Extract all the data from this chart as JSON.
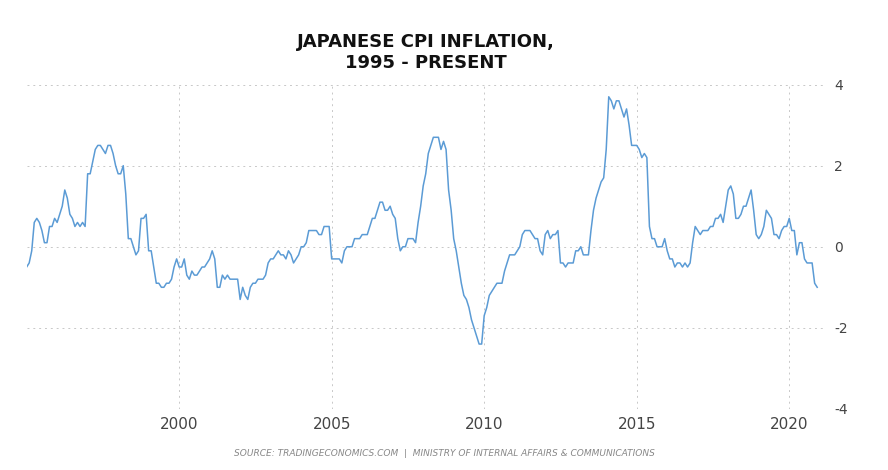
{
  "title": "JAPANESE CPI INFLATION,\n1995 - PRESENT",
  "title_fontsize": 13,
  "source_text": "SOURCE: TRADINGECONOMICS.COM  |  MINISTRY OF INTERNAL AFFAIRS & COMMUNICATIONS",
  "line_color": "#5b9bd5",
  "background_color": "#ffffff",
  "ylim": [
    -4,
    4
  ],
  "yticks": [
    -4,
    -2,
    0,
    2,
    4
  ],
  "grid_color": "#c8c8c8",
  "xlim": [
    1995.0,
    2021.2
  ],
  "xticks": [
    2000,
    2005,
    2010,
    2015,
    2020
  ],
  "years_data": [
    1995.0,
    1995.083,
    1995.167,
    1995.25,
    1995.333,
    1995.417,
    1995.5,
    1995.583,
    1995.667,
    1995.75,
    1995.833,
    1995.917,
    1996.0,
    1996.083,
    1996.167,
    1996.25,
    1996.333,
    1996.417,
    1996.5,
    1996.583,
    1996.667,
    1996.75,
    1996.833,
    1996.917,
    1997.0,
    1997.083,
    1997.167,
    1997.25,
    1997.333,
    1997.417,
    1997.5,
    1997.583,
    1997.667,
    1997.75,
    1997.833,
    1997.917,
    1998.0,
    1998.083,
    1998.167,
    1998.25,
    1998.333,
    1998.417,
    1998.5,
    1998.583,
    1998.667,
    1998.75,
    1998.833,
    1998.917,
    1999.0,
    1999.083,
    1999.167,
    1999.25,
    1999.333,
    1999.417,
    1999.5,
    1999.583,
    1999.667,
    1999.75,
    1999.833,
    1999.917,
    2000.0,
    2000.083,
    2000.167,
    2000.25,
    2000.333,
    2000.417,
    2000.5,
    2000.583,
    2000.667,
    2000.75,
    2000.833,
    2000.917,
    2001.0,
    2001.083,
    2001.167,
    2001.25,
    2001.333,
    2001.417,
    2001.5,
    2001.583,
    2001.667,
    2001.75,
    2001.833,
    2001.917,
    2002.0,
    2002.083,
    2002.167,
    2002.25,
    2002.333,
    2002.417,
    2002.5,
    2002.583,
    2002.667,
    2002.75,
    2002.833,
    2002.917,
    2003.0,
    2003.083,
    2003.167,
    2003.25,
    2003.333,
    2003.417,
    2003.5,
    2003.583,
    2003.667,
    2003.75,
    2003.833,
    2003.917,
    2004.0,
    2004.083,
    2004.167,
    2004.25,
    2004.333,
    2004.417,
    2004.5,
    2004.583,
    2004.667,
    2004.75,
    2004.833,
    2004.917,
    2005.0,
    2005.083,
    2005.167,
    2005.25,
    2005.333,
    2005.417,
    2005.5,
    2005.583,
    2005.667,
    2005.75,
    2005.833,
    2005.917,
    2006.0,
    2006.083,
    2006.167,
    2006.25,
    2006.333,
    2006.417,
    2006.5,
    2006.583,
    2006.667,
    2006.75,
    2006.833,
    2006.917,
    2007.0,
    2007.083,
    2007.167,
    2007.25,
    2007.333,
    2007.417,
    2007.5,
    2007.583,
    2007.667,
    2007.75,
    2007.833,
    2007.917,
    2008.0,
    2008.083,
    2008.167,
    2008.25,
    2008.333,
    2008.417,
    2008.5,
    2008.583,
    2008.667,
    2008.75,
    2008.833,
    2008.917,
    2009.0,
    2009.083,
    2009.167,
    2009.25,
    2009.333,
    2009.417,
    2009.5,
    2009.583,
    2009.667,
    2009.75,
    2009.833,
    2009.917,
    2010.0,
    2010.083,
    2010.167,
    2010.25,
    2010.333,
    2010.417,
    2010.5,
    2010.583,
    2010.667,
    2010.75,
    2010.833,
    2010.917,
    2011.0,
    2011.083,
    2011.167,
    2011.25,
    2011.333,
    2011.417,
    2011.5,
    2011.583,
    2011.667,
    2011.75,
    2011.833,
    2011.917,
    2012.0,
    2012.083,
    2012.167,
    2012.25,
    2012.333,
    2012.417,
    2012.5,
    2012.583,
    2012.667,
    2012.75,
    2012.833,
    2012.917,
    2013.0,
    2013.083,
    2013.167,
    2013.25,
    2013.333,
    2013.417,
    2013.5,
    2013.583,
    2013.667,
    2013.75,
    2013.833,
    2013.917,
    2014.0,
    2014.083,
    2014.167,
    2014.25,
    2014.333,
    2014.417,
    2014.5,
    2014.583,
    2014.667,
    2014.75,
    2014.833,
    2014.917,
    2015.0,
    2015.083,
    2015.167,
    2015.25,
    2015.333,
    2015.417,
    2015.5,
    2015.583,
    2015.667,
    2015.75,
    2015.833,
    2015.917,
    2016.0,
    2016.083,
    2016.167,
    2016.25,
    2016.333,
    2016.417,
    2016.5,
    2016.583,
    2016.667,
    2016.75,
    2016.833,
    2016.917,
    2017.0,
    2017.083,
    2017.167,
    2017.25,
    2017.333,
    2017.417,
    2017.5,
    2017.583,
    2017.667,
    2017.75,
    2017.833,
    2017.917,
    2018.0,
    2018.083,
    2018.167,
    2018.25,
    2018.333,
    2018.417,
    2018.5,
    2018.583,
    2018.667,
    2018.75,
    2018.833,
    2018.917,
    2019.0,
    2019.083,
    2019.167,
    2019.25,
    2019.333,
    2019.417,
    2019.5,
    2019.583,
    2019.667,
    2019.75,
    2019.833,
    2019.917,
    2020.0,
    2020.083,
    2020.167,
    2020.25,
    2020.333,
    2020.417,
    2020.5,
    2020.583,
    2020.667,
    2020.75,
    2020.833,
    2020.917
  ],
  "cpi_values": [
    -0.5,
    -0.4,
    -0.1,
    0.6,
    0.7,
    0.6,
    0.4,
    0.1,
    0.1,
    0.5,
    0.5,
    0.7,
    0.6,
    0.8,
    1.0,
    1.4,
    1.2,
    0.8,
    0.7,
    0.5,
    0.6,
    0.5,
    0.6,
    0.5,
    1.8,
    1.8,
    2.1,
    2.4,
    2.5,
    2.5,
    2.4,
    2.3,
    2.5,
    2.5,
    2.3,
    2.0,
    1.8,
    1.8,
    2.0,
    1.3,
    0.2,
    0.2,
    0.0,
    -0.2,
    -0.1,
    0.7,
    0.7,
    0.8,
    -0.1,
    -0.1,
    -0.5,
    -0.9,
    -0.9,
    -1.0,
    -1.0,
    -0.9,
    -0.9,
    -0.8,
    -0.5,
    -0.3,
    -0.5,
    -0.5,
    -0.3,
    -0.7,
    -0.8,
    -0.6,
    -0.7,
    -0.7,
    -0.6,
    -0.5,
    -0.5,
    -0.4,
    -0.3,
    -0.1,
    -0.3,
    -1.0,
    -1.0,
    -0.7,
    -0.8,
    -0.7,
    -0.8,
    -0.8,
    -0.8,
    -0.8,
    -1.3,
    -1.0,
    -1.2,
    -1.3,
    -1.0,
    -0.9,
    -0.9,
    -0.8,
    -0.8,
    -0.8,
    -0.7,
    -0.4,
    -0.3,
    -0.3,
    -0.2,
    -0.1,
    -0.2,
    -0.2,
    -0.3,
    -0.1,
    -0.2,
    -0.4,
    -0.3,
    -0.2,
    0.0,
    0.0,
    0.1,
    0.4,
    0.4,
    0.4,
    0.4,
    0.3,
    0.3,
    0.5,
    0.5,
    0.5,
    -0.3,
    -0.3,
    -0.3,
    -0.3,
    -0.4,
    -0.1,
    0.0,
    0.0,
    0.0,
    0.2,
    0.2,
    0.2,
    0.3,
    0.3,
    0.3,
    0.5,
    0.7,
    0.7,
    0.9,
    1.1,
    1.1,
    0.9,
    0.9,
    1.0,
    0.8,
    0.7,
    0.2,
    -0.1,
    0.0,
    0.0,
    0.2,
    0.2,
    0.2,
    0.1,
    0.6,
    1.0,
    1.5,
    1.8,
    2.3,
    2.5,
    2.7,
    2.7,
    2.7,
    2.4,
    2.6,
    2.4,
    1.4,
    0.9,
    0.2,
    -0.1,
    -0.5,
    -0.9,
    -1.2,
    -1.3,
    -1.5,
    -1.8,
    -2.0,
    -2.2,
    -2.4,
    -2.4,
    -1.7,
    -1.5,
    -1.2,
    -1.1,
    -1.0,
    -0.9,
    -0.9,
    -0.9,
    -0.6,
    -0.4,
    -0.2,
    -0.2,
    -0.2,
    -0.1,
    0.0,
    0.3,
    0.4,
    0.4,
    0.4,
    0.3,
    0.2,
    0.2,
    -0.1,
    -0.2,
    0.3,
    0.4,
    0.2,
    0.3,
    0.3,
    0.4,
    -0.4,
    -0.4,
    -0.5,
    -0.4,
    -0.4,
    -0.4,
    -0.1,
    -0.1,
    0.0,
    -0.2,
    -0.2,
    -0.2,
    0.4,
    0.9,
    1.2,
    1.4,
    1.6,
    1.7,
    2.4,
    3.7,
    3.6,
    3.4,
    3.6,
    3.6,
    3.4,
    3.2,
    3.4,
    3.0,
    2.5,
    2.5,
    2.5,
    2.4,
    2.2,
    2.3,
    2.2,
    0.5,
    0.2,
    0.2,
    0.0,
    0.0,
    0.0,
    0.2,
    -0.1,
    -0.3,
    -0.3,
    -0.5,
    -0.4,
    -0.4,
    -0.5,
    -0.4,
    -0.5,
    -0.4,
    0.1,
    0.5,
    0.4,
    0.3,
    0.4,
    0.4,
    0.4,
    0.5,
    0.5,
    0.7,
    0.7,
    0.8,
    0.6,
    1.0,
    1.4,
    1.5,
    1.3,
    0.7,
    0.7,
    0.8,
    1.0,
    1.0,
    1.2,
    1.4,
    0.9,
    0.3,
    0.2,
    0.3,
    0.5,
    0.9,
    0.8,
    0.7,
    0.3,
    0.3,
    0.2,
    0.4,
    0.5,
    0.5,
    0.7,
    0.4,
    0.4,
    -0.2,
    0.1,
    0.1,
    -0.3,
    -0.4,
    -0.4,
    -0.4,
    -0.9,
    -1.0
  ]
}
